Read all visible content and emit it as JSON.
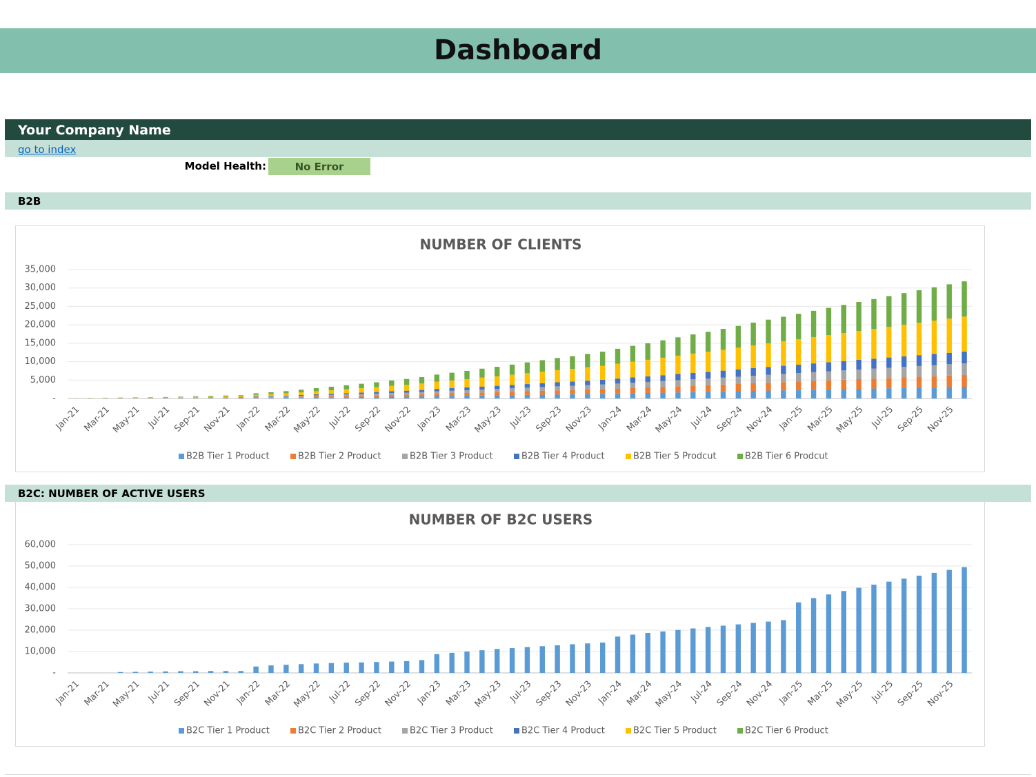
{
  "header": {
    "title": "Dashboard"
  },
  "company_name": "Your Company Name",
  "link": "go to index",
  "model_health": {
    "label": "Model Health:",
    "status": "No Error"
  },
  "sections": [
    "B2B",
    "B2C: NUMBER OF ACTIVE USERS"
  ],
  "chart_data": [
    {
      "type": "bar",
      "stacked": true,
      "title": "NUMBER OF CLIENTS",
      "categories": [
        "Jan-21",
        null,
        "Mar-21",
        null,
        "May-21",
        null,
        "Jul-21",
        null,
        "Sep-21",
        null,
        "Nov-21",
        null,
        "Jan-22",
        null,
        "Mar-22",
        null,
        "May-22",
        null,
        "Jul-22",
        null,
        "Sep-22",
        null,
        "Nov-22",
        null,
        "Jan-23",
        null,
        "Mar-23",
        null,
        "May-23",
        null,
        "Jul-23",
        null,
        "Sep-23",
        null,
        "Nov-23",
        null,
        "Jan-24",
        null,
        "Mar-24",
        null,
        "May-24",
        null,
        "Jul-24",
        null,
        "Sep-24",
        null,
        "Nov-24",
        null,
        "Jan-25",
        null,
        "Mar-25",
        null,
        "May-25",
        null,
        "Jul-25",
        null,
        "Sep-25",
        null,
        "Nov-25",
        null
      ],
      "ylim": [
        0,
        35000
      ],
      "yticks": [
        {
          "value": 0,
          "label": "-"
        },
        {
          "value": 5000,
          "label": "5,000"
        },
        {
          "value": 10000,
          "label": "10,000"
        },
        {
          "value": 15000,
          "label": "15,000"
        },
        {
          "value": 20000,
          "label": "20,000"
        },
        {
          "value": 25000,
          "label": "25,000"
        },
        {
          "value": 30000,
          "label": "30,000"
        },
        {
          "value": 35000,
          "label": "35,000"
        }
      ],
      "grid": true,
      "legend": "bottom",
      "series": [
        {
          "name": "B2B Tier 1 Product",
          "color": "#5b9bd5",
          "values": [
            10,
            15,
            20,
            25,
            30,
            35,
            40,
            50,
            60,
            70,
            80,
            90,
            140,
            170,
            200,
            240,
            280,
            320,
            360,
            400,
            440,
            490,
            530,
            580,
            650,
            700,
            750,
            810,
            860,
            920,
            980,
            1040,
            1100,
            1150,
            1210,
            1270,
            1350,
            1430,
            1500,
            1580,
            1660,
            1740,
            1810,
            1890,
            1970,
            2060,
            2140,
            2220,
            2300,
            2380,
            2460,
            2540,
            2620,
            2700,
            2780,
            2860,
            2940,
            3020,
            3100,
            3180
          ]
        },
        {
          "name": "B2B Tier 2 Product",
          "color": "#ed7d31",
          "values": [
            10,
            15,
            20,
            25,
            30,
            35,
            40,
            50,
            60,
            70,
            80,
            90,
            140,
            170,
            200,
            240,
            280,
            320,
            360,
            400,
            440,
            490,
            530,
            580,
            650,
            700,
            750,
            810,
            860,
            920,
            980,
            1040,
            1100,
            1150,
            1210,
            1270,
            1350,
            1430,
            1500,
            1580,
            1660,
            1740,
            1810,
            1890,
            1970,
            2060,
            2140,
            2220,
            2300,
            2380,
            2460,
            2540,
            2620,
            2700,
            2780,
            2860,
            2940,
            3020,
            3100,
            3180
          ]
        },
        {
          "name": "B2B Tier 3 Product",
          "color": "#a5a5a5",
          "values": [
            10,
            15,
            20,
            25,
            30,
            35,
            40,
            50,
            60,
            70,
            80,
            90,
            140,
            170,
            200,
            240,
            280,
            320,
            360,
            400,
            440,
            490,
            530,
            580,
            650,
            700,
            750,
            810,
            860,
            920,
            980,
            1040,
            1100,
            1150,
            1210,
            1270,
            1350,
            1430,
            1500,
            1580,
            1660,
            1740,
            1810,
            1890,
            1970,
            2060,
            2140,
            2220,
            2300,
            2380,
            2460,
            2540,
            2620,
            2700,
            2780,
            2860,
            2940,
            3020,
            3100,
            3180
          ]
        },
        {
          "name": "B2B Tier 4 Product",
          "color": "#4472c4",
          "values": [
            10,
            15,
            20,
            25,
            30,
            35,
            40,
            50,
            60,
            70,
            80,
            90,
            140,
            170,
            200,
            240,
            280,
            320,
            360,
            400,
            440,
            490,
            530,
            580,
            650,
            700,
            750,
            810,
            860,
            920,
            980,
            1040,
            1100,
            1150,
            1210,
            1270,
            1350,
            1430,
            1500,
            1580,
            1660,
            1740,
            1810,
            1890,
            1970,
            2060,
            2140,
            2220,
            2300,
            2380,
            2460,
            2540,
            2620,
            2700,
            2780,
            2860,
            2940,
            3020,
            3100,
            3180
          ]
        },
        {
          "name": "B2B Tier 5 Prodcut",
          "color": "#ffc000",
          "values": [
            30,
            45,
            60,
            75,
            90,
            105,
            120,
            150,
            180,
            210,
            240,
            270,
            420,
            510,
            600,
            720,
            840,
            960,
            1080,
            1200,
            1320,
            1470,
            1590,
            1740,
            1950,
            2100,
            2250,
            2430,
            2580,
            2760,
            2940,
            3120,
            3300,
            3450,
            3630,
            3810,
            4050,
            4290,
            4500,
            4740,
            4980,
            5220,
            5430,
            5670,
            5910,
            6180,
            6420,
            6660,
            6900,
            7140,
            7380,
            7620,
            7860,
            8100,
            8340,
            8580,
            8820,
            9060,
            9300,
            9540
          ]
        },
        {
          "name": "B2B Tier 6 Prodcut",
          "color": "#70ad47",
          "values": [
            30,
            45,
            60,
            75,
            90,
            105,
            120,
            150,
            180,
            210,
            240,
            270,
            420,
            510,
            600,
            720,
            840,
            960,
            1080,
            1200,
            1320,
            1470,
            1590,
            1740,
            1950,
            2100,
            2250,
            2430,
            2580,
            2760,
            2940,
            3120,
            3300,
            3450,
            3630,
            3810,
            4050,
            4290,
            4500,
            4740,
            4980,
            5220,
            5430,
            5670,
            5910,
            6180,
            6420,
            6660,
            6900,
            7140,
            7380,
            7620,
            7860,
            8100,
            8340,
            8580,
            8820,
            9060,
            9300,
            9540
          ]
        }
      ]
    },
    {
      "type": "bar",
      "stacked": true,
      "title": "NUMBER OF B2C USERS",
      "categories": [
        "Jan-21",
        null,
        "Mar-21",
        null,
        "May-21",
        null,
        "Jul-21",
        null,
        "Sep-21",
        null,
        "Nov-21",
        null,
        "Jan-22",
        null,
        "Mar-22",
        null,
        "May-22",
        null,
        "Jul-22",
        null,
        "Sep-22",
        null,
        "Nov-22",
        null,
        "Jan-23",
        null,
        "Mar-23",
        null,
        "May-23",
        null,
        "Jul-23",
        null,
        "Sep-23",
        null,
        "Nov-23",
        null,
        "Jan-24",
        null,
        "Mar-24",
        null,
        "May-24",
        null,
        "Jul-24",
        null,
        "Sep-24",
        null,
        "Nov-24",
        null,
        "Jan-25",
        null,
        "Mar-25",
        null,
        "May-25",
        null,
        "Jul-25",
        null,
        "Sep-25",
        null,
        "Nov-25",
        null
      ],
      "ylim": [
        0,
        60000
      ],
      "yticks": [
        {
          "value": 0,
          "label": "-"
        },
        {
          "value": 10000,
          "label": "10,000"
        },
        {
          "value": 20000,
          "label": "20,000"
        },
        {
          "value": 30000,
          "label": "30,000"
        },
        {
          "value": 40000,
          "label": "40,000"
        },
        {
          "value": 50000,
          "label": "50,000"
        },
        {
          "value": 60000,
          "label": "60,000"
        }
      ],
      "grid": true,
      "legend": "bottom",
      "series": [
        {
          "name": "B2C Tier 1 Product",
          "color": "#5b9bd5",
          "values": [
            0,
            0,
            0,
            400,
            500,
            600,
            700,
            800,
            800,
            900,
            900,
            900,
            3000,
            3500,
            3800,
            4100,
            4400,
            4600,
            4800,
            4900,
            5100,
            5300,
            5500,
            6000,
            8800,
            9400,
            10000,
            10600,
            11200,
            11600,
            12100,
            12500,
            12900,
            13400,
            13800,
            14200,
            17000,
            17900,
            18700,
            19400,
            20100,
            20800,
            21500,
            22100,
            22700,
            23400,
            24000,
            24700,
            33000,
            35000,
            36700,
            38300,
            39800,
            41300,
            42700,
            44100,
            45500,
            46800,
            48200,
            49500
          ]
        },
        {
          "name": "B2C Tier 2 Product",
          "color": "#ed7d31",
          "values": [
            0,
            0,
            0,
            0,
            0,
            0,
            0,
            0,
            0,
            0,
            0,
            0,
            0,
            0,
            0,
            0,
            0,
            0,
            0,
            0,
            0,
            0,
            0,
            0,
            0,
            0,
            0,
            0,
            0,
            0,
            0,
            0,
            0,
            0,
            0,
            0,
            0,
            0,
            0,
            0,
            0,
            0,
            0,
            0,
            0,
            0,
            0,
            0,
            0,
            0,
            0,
            0,
            0,
            0,
            0,
            0,
            0,
            0,
            0,
            0
          ]
        },
        {
          "name": "B2C Tier 3 Product",
          "color": "#a5a5a5",
          "values": [
            0,
            0,
            0,
            0,
            0,
            0,
            0,
            0,
            0,
            0,
            0,
            0,
            0,
            0,
            0,
            0,
            0,
            0,
            0,
            0,
            0,
            0,
            0,
            0,
            0,
            0,
            0,
            0,
            0,
            0,
            0,
            0,
            0,
            0,
            0,
            0,
            0,
            0,
            0,
            0,
            0,
            0,
            0,
            0,
            0,
            0,
            0,
            0,
            0,
            0,
            0,
            0,
            0,
            0,
            0,
            0,
            0,
            0,
            0,
            0
          ]
        },
        {
          "name": "B2C Tier 4 Product",
          "color": "#4472c4",
          "values": [
            0,
            0,
            0,
            0,
            0,
            0,
            0,
            0,
            0,
            0,
            0,
            0,
            0,
            0,
            0,
            0,
            0,
            0,
            0,
            0,
            0,
            0,
            0,
            0,
            0,
            0,
            0,
            0,
            0,
            0,
            0,
            0,
            0,
            0,
            0,
            0,
            0,
            0,
            0,
            0,
            0,
            0,
            0,
            0,
            0,
            0,
            0,
            0,
            0,
            0,
            0,
            0,
            0,
            0,
            0,
            0,
            0,
            0,
            0,
            0
          ]
        },
        {
          "name": "B2C Tier 5 Product",
          "color": "#ffc000",
          "values": [
            0,
            0,
            0,
            0,
            0,
            0,
            0,
            0,
            0,
            0,
            0,
            0,
            0,
            0,
            0,
            0,
            0,
            0,
            0,
            0,
            0,
            0,
            0,
            0,
            0,
            0,
            0,
            0,
            0,
            0,
            0,
            0,
            0,
            0,
            0,
            0,
            0,
            0,
            0,
            0,
            0,
            0,
            0,
            0,
            0,
            0,
            0,
            0,
            0,
            0,
            0,
            0,
            0,
            0,
            0,
            0,
            0,
            0,
            0,
            0
          ]
        },
        {
          "name": "B2C Tier 6 Product",
          "color": "#70ad47",
          "values": [
            0,
            0,
            0,
            0,
            0,
            0,
            0,
            0,
            0,
            0,
            0,
            0,
            0,
            0,
            0,
            0,
            0,
            0,
            0,
            0,
            0,
            0,
            0,
            0,
            0,
            0,
            0,
            0,
            0,
            0,
            0,
            0,
            0,
            0,
            0,
            0,
            0,
            0,
            0,
            0,
            0,
            0,
            0,
            0,
            0,
            0,
            0,
            0,
            0,
            0,
            0,
            0,
            0,
            0,
            0,
            0,
            0,
            0,
            0,
            0
          ]
        }
      ]
    }
  ]
}
